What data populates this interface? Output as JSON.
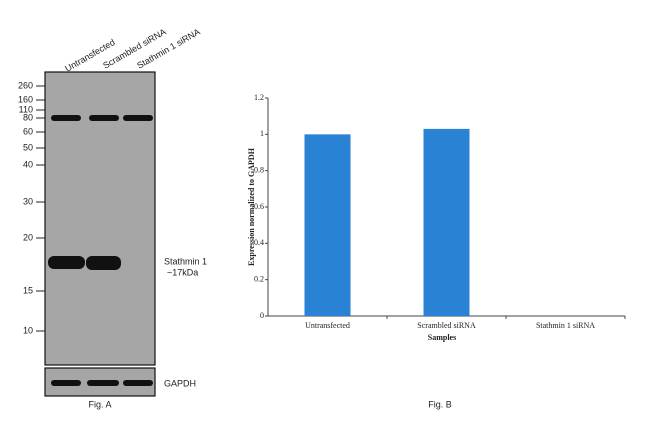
{
  "blot": {
    "lanes": [
      "Untransfected",
      "Scrambled siRNA",
      "Stathmin 1 siRNA"
    ],
    "markers": [
      260,
      160,
      110,
      80,
      60,
      50,
      40,
      30,
      20,
      15,
      10
    ],
    "band_label": [
      "Stathmin 1",
      "~17kDa"
    ],
    "loading_label": "GAPDH",
    "caption": "Fig. A"
  },
  "chart_data": {
    "type": "bar",
    "caption": "Fig. B",
    "y_label": "Expression normalized to GAPDH",
    "x_label": "Samples",
    "categories": [
      "Untransfected",
      "Scrambled siRNA",
      "Stathmin 1 siRNA"
    ],
    "values": [
      1,
      1.03,
      0
    ],
    "color": "#2a82d4",
    "ylim": [
      0,
      1.2
    ],
    "yticks": [
      0,
      0.2,
      0.4,
      0.6,
      0.8,
      1,
      1.2
    ]
  }
}
